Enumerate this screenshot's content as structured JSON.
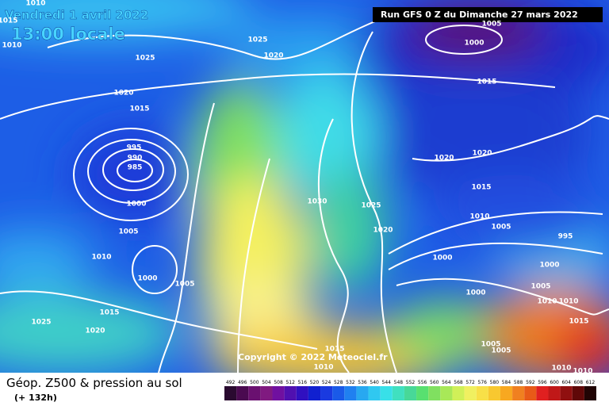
{
  "header": {
    "date": "Vendredi 1 avril 2022",
    "time": "13:00 locale",
    "run": "Run GFS 0 Z du Dimanche 27 mars 2022"
  },
  "copyright": "Copyright © 2022 Meteociel.fr",
  "footer": {
    "title": "Géop. Z500 & pression au sol",
    "lead": "(+ 132h)"
  },
  "legend": {
    "ticks": [
      492,
      496,
      500,
      504,
      508,
      512,
      516,
      520,
      524,
      528,
      532,
      536,
      540,
      544,
      548,
      552,
      556,
      560,
      564,
      568,
      572,
      576,
      580,
      584,
      588,
      592,
      596,
      600,
      604,
      608,
      612
    ]
  },
  "isobar_labels": [
    1010,
    1015,
    1010,
    1025,
    1025,
    1020,
    1005,
    1000,
    1015,
    1020,
    1015,
    995,
    990,
    985,
    1000,
    1020,
    1020,
    1015,
    1030,
    1025,
    1020,
    1010,
    1005,
    995,
    1005,
    1010,
    1000,
    1000,
    1000,
    1005,
    1005,
    1000,
    1010,
    1010,
    1015,
    1025,
    1015,
    1020,
    1005,
    1015,
    1005,
    1010,
    1010,
    1010
  ]
}
